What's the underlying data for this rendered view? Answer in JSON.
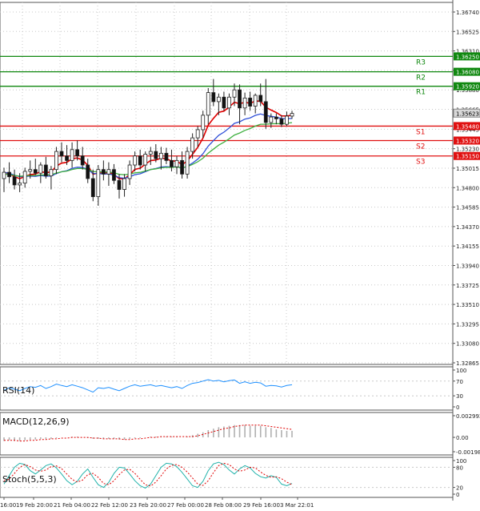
{
  "colors": {
    "border": "#555555",
    "grid": "#c8c8c8",
    "candle_up": "#1e9e1e",
    "candle_down": "#e01010",
    "ma_fast": "#e00000",
    "ma_mid": "#3050d8",
    "ma_slow": "#40b040",
    "resistance": "#108810",
    "support": "#e01010",
    "rsi_line": "#1e90ff",
    "macd_bar": "#b0b0b0",
    "macd_signal": "#e00000",
    "stoch_main": "#20b2aa",
    "stoch_signal": "#e00000",
    "current_price_bg": "#d8d8d8"
  },
  "chart_data": [
    {
      "type": "candlestick",
      "title": "",
      "ylim": [
        1.328,
        1.368
      ],
      "y_ticks": [
        "1.36740",
        "1.36525",
        "1.36310",
        "1.36095",
        "1.35880",
        "1.35665",
        "1.35445",
        "1.35230",
        "1.35015",
        "1.34800",
        "1.34585",
        "1.34370",
        "1.34155",
        "1.33940",
        "1.33725",
        "1.33510",
        "1.33295",
        "1.33080",
        "1.32865"
      ],
      "y_tick_values": [
        1.3674,
        1.36525,
        1.3631,
        1.36095,
        1.3588,
        1.35665,
        1.35445,
        1.3523,
        1.35015,
        1.348,
        1.34585,
        1.3437,
        1.34155,
        1.3394,
        1.33725,
        1.3351,
        1.33295,
        1.3308,
        1.32865
      ],
      "current_price": {
        "value": 1.35623,
        "label": "1.35623"
      },
      "levels": [
        {
          "name": "R3",
          "value": 1.3625,
          "label": "1.36250",
          "kind": "resistance"
        },
        {
          "name": "R2",
          "value": 1.3608,
          "label": "1.36080",
          "kind": "resistance"
        },
        {
          "name": "R1",
          "value": 1.3592,
          "label": "1.35920",
          "kind": "resistance"
        },
        {
          "name": "S1",
          "value": 1.3548,
          "label": "1.35480",
          "kind": "support"
        },
        {
          "name": "S2",
          "value": 1.3532,
          "label": "1.35320",
          "kind": "support"
        },
        {
          "name": "S3",
          "value": 1.3515,
          "label": "1.35150",
          "kind": "support"
        }
      ],
      "candles": [
        {
          "o": 1.349,
          "h": 1.3502,
          "l": 1.3475,
          "c": 1.3497
        },
        {
          "o": 1.3497,
          "h": 1.3508,
          "l": 1.3485,
          "c": 1.3492
        },
        {
          "o": 1.3492,
          "h": 1.35,
          "l": 1.3478,
          "c": 1.3483
        },
        {
          "o": 1.3483,
          "h": 1.3496,
          "l": 1.3475,
          "c": 1.3485
        },
        {
          "o": 1.3485,
          "h": 1.3502,
          "l": 1.348,
          "c": 1.3498
        },
        {
          "o": 1.3498,
          "h": 1.351,
          "l": 1.349,
          "c": 1.35
        },
        {
          "o": 1.35,
          "h": 1.3512,
          "l": 1.3494,
          "c": 1.3496
        },
        {
          "o": 1.3496,
          "h": 1.3508,
          "l": 1.3485,
          "c": 1.3505
        },
        {
          "o": 1.3505,
          "h": 1.3514,
          "l": 1.349,
          "c": 1.3493
        },
        {
          "o": 1.3493,
          "h": 1.3504,
          "l": 1.3478,
          "c": 1.35
        },
        {
          "o": 1.35,
          "h": 1.3525,
          "l": 1.3495,
          "c": 1.352
        },
        {
          "o": 1.352,
          "h": 1.353,
          "l": 1.3508,
          "c": 1.3515
        },
        {
          "o": 1.3515,
          "h": 1.3527,
          "l": 1.3505,
          "c": 1.351
        },
        {
          "o": 1.351,
          "h": 1.353,
          "l": 1.3502,
          "c": 1.3522
        },
        {
          "o": 1.3522,
          "h": 1.3532,
          "l": 1.351,
          "c": 1.3515
        },
        {
          "o": 1.3515,
          "h": 1.3525,
          "l": 1.35,
          "c": 1.3505
        },
        {
          "o": 1.3505,
          "h": 1.3512,
          "l": 1.3485,
          "c": 1.349
        },
        {
          "o": 1.349,
          "h": 1.35,
          "l": 1.3465,
          "c": 1.347
        },
        {
          "o": 1.347,
          "h": 1.3505,
          "l": 1.346,
          "c": 1.35
        },
        {
          "o": 1.35,
          "h": 1.351,
          "l": 1.3488,
          "c": 1.3495
        },
        {
          "o": 1.3495,
          "h": 1.3508,
          "l": 1.3482,
          "c": 1.35
        },
        {
          "o": 1.35,
          "h": 1.3506,
          "l": 1.3484,
          "c": 1.3488
        },
        {
          "o": 1.3488,
          "h": 1.3495,
          "l": 1.3468,
          "c": 1.3478
        },
        {
          "o": 1.3478,
          "h": 1.3495,
          "l": 1.347,
          "c": 1.349
        },
        {
          "o": 1.349,
          "h": 1.351,
          "l": 1.3483,
          "c": 1.3505
        },
        {
          "o": 1.3505,
          "h": 1.352,
          "l": 1.3498,
          "c": 1.3515
        },
        {
          "o": 1.3515,
          "h": 1.3522,
          "l": 1.35,
          "c": 1.3505
        },
        {
          "o": 1.3505,
          "h": 1.352,
          "l": 1.3498,
          "c": 1.3517
        },
        {
          "o": 1.3517,
          "h": 1.3525,
          "l": 1.3505,
          "c": 1.352
        },
        {
          "o": 1.352,
          "h": 1.3528,
          "l": 1.3508,
          "c": 1.3512
        },
        {
          "o": 1.3512,
          "h": 1.3525,
          "l": 1.35,
          "c": 1.3518
        },
        {
          "o": 1.3518,
          "h": 1.3524,
          "l": 1.3506,
          "c": 1.351
        },
        {
          "o": 1.351,
          "h": 1.3522,
          "l": 1.3498,
          "c": 1.3503
        },
        {
          "o": 1.3503,
          "h": 1.3515,
          "l": 1.3495,
          "c": 1.351
        },
        {
          "o": 1.351,
          "h": 1.352,
          "l": 1.349,
          "c": 1.3495
        },
        {
          "o": 1.3495,
          "h": 1.3525,
          "l": 1.349,
          "c": 1.352
        },
        {
          "o": 1.352,
          "h": 1.354,
          "l": 1.3512,
          "c": 1.3535
        },
        {
          "o": 1.3535,
          "h": 1.3548,
          "l": 1.3525,
          "c": 1.3544
        },
        {
          "o": 1.3544,
          "h": 1.3565,
          "l": 1.3535,
          "c": 1.356
        },
        {
          "o": 1.356,
          "h": 1.359,
          "l": 1.355,
          "c": 1.3585
        },
        {
          "o": 1.3585,
          "h": 1.36,
          "l": 1.357,
          "c": 1.3575
        },
        {
          "o": 1.3575,
          "h": 1.3584,
          "l": 1.356,
          "c": 1.358
        },
        {
          "o": 1.358,
          "h": 1.3586,
          "l": 1.3565,
          "c": 1.3568
        },
        {
          "o": 1.3568,
          "h": 1.3584,
          "l": 1.356,
          "c": 1.358
        },
        {
          "o": 1.358,
          "h": 1.3595,
          "l": 1.357,
          "c": 1.3588
        },
        {
          "o": 1.3588,
          "h": 1.3594,
          "l": 1.355,
          "c": 1.3568
        },
        {
          "o": 1.3568,
          "h": 1.3585,
          "l": 1.356,
          "c": 1.3579
        },
        {
          "o": 1.3579,
          "h": 1.3586,
          "l": 1.3565,
          "c": 1.357
        },
        {
          "o": 1.357,
          "h": 1.3584,
          "l": 1.3562,
          "c": 1.3582
        },
        {
          "o": 1.3582,
          "h": 1.3595,
          "l": 1.357,
          "c": 1.3575
        },
        {
          "o": 1.3575,
          "h": 1.36,
          "l": 1.3545,
          "c": 1.3552
        },
        {
          "o": 1.3552,
          "h": 1.3562,
          "l": 1.3546,
          "c": 1.3558
        },
        {
          "o": 1.3558,
          "h": 1.3562,
          "l": 1.355,
          "c": 1.3556
        },
        {
          "o": 1.3556,
          "h": 1.356,
          "l": 1.3547,
          "c": 1.355
        },
        {
          "o": 1.355,
          "h": 1.3564,
          "l": 1.3548,
          "c": 1.3559
        },
        {
          "o": 1.3559,
          "h": 1.3565,
          "l": 1.3556,
          "c": 1.3562
        }
      ],
      "x_ticks": [
        "16:00",
        "19 Feb 20:00",
        "21 Feb 04:00",
        "22 Feb 12:00",
        "23 Feb 20:00",
        "27 Feb 00:00",
        "28 Feb 08:00",
        "29 Feb 16:00",
        "3 Mar 22:01"
      ],
      "moving_averages": [
        "fast",
        "mid",
        "slow"
      ]
    },
    {
      "type": "line",
      "title": "RSI(14)",
      "ylim": [
        0,
        100
      ],
      "y_ticks": [
        "100",
        "70",
        "30",
        "0"
      ],
      "y_tick_values": [
        100,
        70,
        30,
        0
      ],
      "values": [
        45,
        52,
        48,
        44,
        50,
        55,
        53,
        58,
        50,
        55,
        62,
        58,
        55,
        60,
        56,
        52,
        46,
        40,
        52,
        50,
        53,
        48,
        44,
        50,
        56,
        60,
        56,
        58,
        60,
        56,
        58,
        55,
        52,
        55,
        50,
        58,
        64,
        66,
        70,
        74,
        70,
        72,
        68,
        71,
        73,
        64,
        68,
        64,
        67,
        65,
        56,
        58,
        57,
        54,
        58,
        60
      ]
    },
    {
      "type": "bar",
      "title": "MACD(12,26,9)",
      "ylim": [
        -0.001985,
        0.002992
      ],
      "y_ticks": [
        "0.002992",
        "0.00",
        "-0.001985"
      ],
      "y_tick_values": [
        0.002992,
        0.0,
        -0.001985
      ],
      "values": [
        -0.0005,
        -0.0004,
        -0.0005,
        -0.0005,
        -0.0004,
        -0.0003,
        -0.0003,
        -0.0002,
        -0.0002,
        -0.0002,
        -0.0001,
        0.0,
        0.0,
        0.0001,
        0.0001,
        0.0,
        -0.0001,
        -0.0002,
        -0.0002,
        -0.0002,
        -0.0002,
        -0.0002,
        -0.0003,
        -0.0003,
        -0.0002,
        -0.0001,
        -0.0001,
        0.0,
        0.0001,
        0.0001,
        0.0001,
        0.0001,
        0.0001,
        0.0001,
        0.0,
        0.0001,
        0.0003,
        0.0005,
        0.0007,
        0.001,
        0.0012,
        0.0014,
        0.0015,
        0.0016,
        0.0017,
        0.0017,
        0.0017,
        0.0016,
        0.0016,
        0.0016,
        0.0014,
        0.0013,
        0.0011,
        0.001,
        0.0009,
        0.0009
      ],
      "signal": [
        -0.0004,
        -0.0004,
        -0.0004,
        -0.0005,
        -0.0005,
        -0.0004,
        -0.0004,
        -0.0003,
        -0.0003,
        -0.0002,
        -0.0002,
        -0.0001,
        -0.0001,
        0.0,
        0.0,
        0.0,
        0.0,
        -0.0001,
        -0.0001,
        -0.0002,
        -0.0002,
        -0.0002,
        -0.0002,
        -0.0003,
        -0.0003,
        -0.0002,
        -0.0002,
        -0.0001,
        0.0,
        0.0,
        0.0001,
        0.0001,
        0.0001,
        0.0001,
        0.0001,
        0.0001,
        0.0001,
        0.0002,
        0.0004,
        0.0006,
        0.0008,
        0.001,
        0.0012,
        0.0013,
        0.0015,
        0.0016,
        0.0017,
        0.0017,
        0.0017,
        0.0017,
        0.0016,
        0.0015,
        0.0014,
        0.0013,
        0.0012,
        0.0011
      ]
    },
    {
      "type": "line",
      "title": "Stoch(5,5,3)",
      "ylim": [
        0,
        100
      ],
      "y_ticks": [
        "100",
        "80",
        "20",
        "0"
      ],
      "y_tick_values": [
        100,
        80,
        20,
        0
      ],
      "main": [
        30,
        55,
        80,
        92,
        88,
        70,
        60,
        72,
        85,
        90,
        78,
        60,
        40,
        28,
        38,
        60,
        75,
        50,
        28,
        20,
        35,
        62,
        80,
        78,
        60,
        40,
        25,
        18,
        30,
        55,
        80,
        92,
        90,
        82,
        65,
        45,
        25,
        20,
        38,
        70,
        90,
        95,
        88,
        72,
        60,
        75,
        85,
        78,
        62,
        52,
        48,
        55,
        50,
        30,
        25,
        32
      ],
      "signal": [
        40,
        45,
        62,
        80,
        88,
        82,
        72,
        68,
        72,
        82,
        84,
        76,
        60,
        44,
        36,
        42,
        58,
        62,
        50,
        32,
        28,
        40,
        58,
        72,
        74,
        62,
        44,
        28,
        24,
        36,
        55,
        75,
        86,
        88,
        80,
        66,
        48,
        30,
        26,
        40,
        64,
        85,
        92,
        88,
        75,
        68,
        72,
        80,
        78,
        66,
        56,
        50,
        52,
        46,
        36,
        28
      ]
    }
  ]
}
